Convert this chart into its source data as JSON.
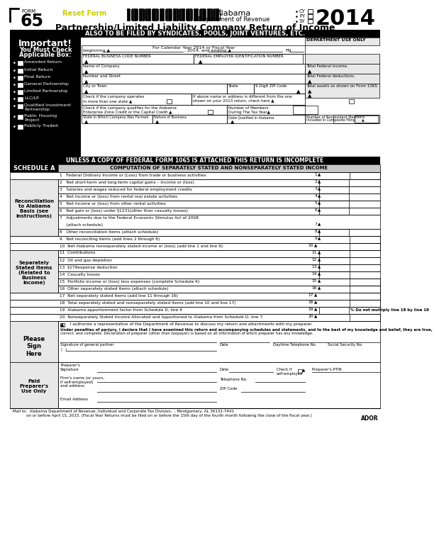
{
  "form_number": "65",
  "form_label": "FORM",
  "reset_button": "Reset Form",
  "state": "Alabama",
  "dept": "Department of Revenue",
  "year": "2014",
  "title": "Partnership/Limited Liability Company Return of Income",
  "also_filed": "ALSO TO BE FILED BY SYNDICATES, POOLS, JOINT VENTURES, ETC.",
  "dept_use_only": "DEPARTMENT USE ONLY",
  "fiscal_year_text": "For Calendar Year 2014 or Fiscal Year",
  "beginning_text": "beginning ▲",
  "year_text": ", 2014, and ending ▲",
  "fn_text": "FN",
  "fed_business_code": "FEDERAL BUSINESS CODE NUMBER",
  "fed_employer_id": "FEDERAL EMPLOYER IDENTIFICATION NUMBER",
  "name_company": "Name of Company",
  "total_fed_income": "Total Federal income.",
  "total_fed_deductions": "Total Federal deductions.",
  "total_assets": "Total assets as shown on Form 1065.",
  "number_street": "Number and Street",
  "city_town": "City or Town",
  "state_label": "State",
  "zip_label": "9 Digit ZIP Code",
  "important_title": "Important!",
  "important_sub1": "You Must Check",
  "important_sub2": "Applicable Box:",
  "checkboxes": [
    "Amended Return",
    "Initial Return",
    "Final Return",
    "General Partnership",
    "Limited Partnership",
    "LLC/LP",
    "Qualified Investment\nPartnership",
    "Public Housing\nProject",
    "Publicly Traded"
  ],
  "check_operates": "Check if the company operates\nin more than one state ▲",
  "check_diff_address": "If above name or address is different from the one\nshown on your 2013 return, check here ▲",
  "check_al_enterprise": "Check if the company qualifies for the Alabama\nEnterprise Zone Credit or the Capital Credit ▲",
  "num_members_label": "Number of Members\nDuring The Tax Year▲",
  "state_formed": "State in Which Company Was Formed",
  "nature_business": "Nature of Business",
  "date_qualified": "Date Qualified in Alabama",
  "num_nonresident": "Number of Nonresident Members\nIncluded in Composite Filing. . . ▲",
  "incomplete_notice": "UNLESS A COPY OF FEDERAL FORM 1065 IS ATTACHED THIS RETURN IS INCOMPLETE",
  "schedule_a": "SCHEDULE A",
  "schedule_a_title": "COMPUTATION OF SEPARATELY STATED AND NONSEPARATELY STATED INCOME",
  "line1": "1   Federal Ordinary Income or (Loss) from trade or business activities",
  "line2": "2   Net short-term and long-term capital gains – income or (loss)",
  "line3": "3   Salaries and wages reduced for federal employment credits",
  "line4": "4   Net income or (loss) from rental real estate activities",
  "line5": "5   Net income or (loss) from other rental activities",
  "line6": "6   Net gain or (loss) under §1231(other than casualty losses)",
  "line7a": "7   Adjustments due to the Federal Economic Stimulus Act of 2008",
  "line7b": "     (attach schedule)",
  "line8": "8   Other reconciliation items (attach schedule)",
  "line9": "9   Net reconciling items (add lines 2 through 8)",
  "line10": "10  Net Alabama nonseparately stated income or (loss) (add line 1 and line 9)",
  "line11": "11  Contributions",
  "line12": "12  Oil and gas depletion",
  "line13": "13  §179expense deduction",
  "line14": "14  Casualty losses",
  "line15": "15  Portfolio income or (loss) less expenses (complete Schedule K)",
  "line16": "16  Other separately stated items (attach schedule)",
  "line17": "17  Net separately stated items (add line 11 through 16)",
  "line18": "18  Total separately stated and nonseparately stated items (add line 10 and line 17)",
  "line19": "19  Alabama apportionment factor from Schedule D, line 4",
  "line20": "20  Nonseparately Stated Income Allocated and Apportioned to Alabama from Schedule D, line 7",
  "recon_label": "Reconciliation\nto Alabama\nBasis (see\ninstructions)",
  "sep_label": "Separately\nStated Items\n(Related to\nBusiness\nIncome)",
  "please_sign": "Please\nSign\nHere",
  "authorize_text": "   I authorize a representative of the Department of Revenue to discuss my return and attachments with my preparer.",
  "penalties_text_1": "Under penalties of perjury, I declare that I have examined this return and accompanying schedules and statements, and to the best of my knowledge and belief, they are true,",
  "penalties_text_2": "correct, and complete. Declaration of preparer (other than taxpayer) is based on all information of which preparer has any knowledge.",
  "sig_general_partner": "Signature of general partner",
  "date_label": "Date",
  "daytime_tel": "Daytime Telephone No.",
  "ssn_label": "Social Security No.",
  "preparer_sig": "Preparer's\nSignature",
  "date2": "Date",
  "check_self_employed": "Check if\nself-employed",
  "preparer_ptin": "Preparer's PTIN",
  "paid_label": "Paid\nPreparer's\nUse Only",
  "firm_name": "Firm's name (or yours,",
  "firm_name2": "if self-employed)",
  "firm_name3": "and address",
  "telephone_no": "Telephone No.",
  "zip_code": "ZIP Code",
  "email": "Email Address",
  "mail_line1": "Mail to:  Alabama Department of Revenue, Individual and Corporate Tax Division,  , Montgomery, AL 36132-7441",
  "mail_line2": "           on or before April 15, 2015. (Fiscal Year Returns must be filed on or before the 15th day of the fourth month following the close of the fiscal year.)",
  "ador": "ADOR",
  "do_not_multiply": "% Do not multiply line 18 by line 19",
  "cy_label": "CY",
  "fy_label": "FY",
  "sy_label": "SY",
  "bg": "#ffffff",
  "black": "#000000",
  "light_gray": "#e8e8e8",
  "med_gray": "#c8c8c8",
  "yellow": "#e8e800"
}
